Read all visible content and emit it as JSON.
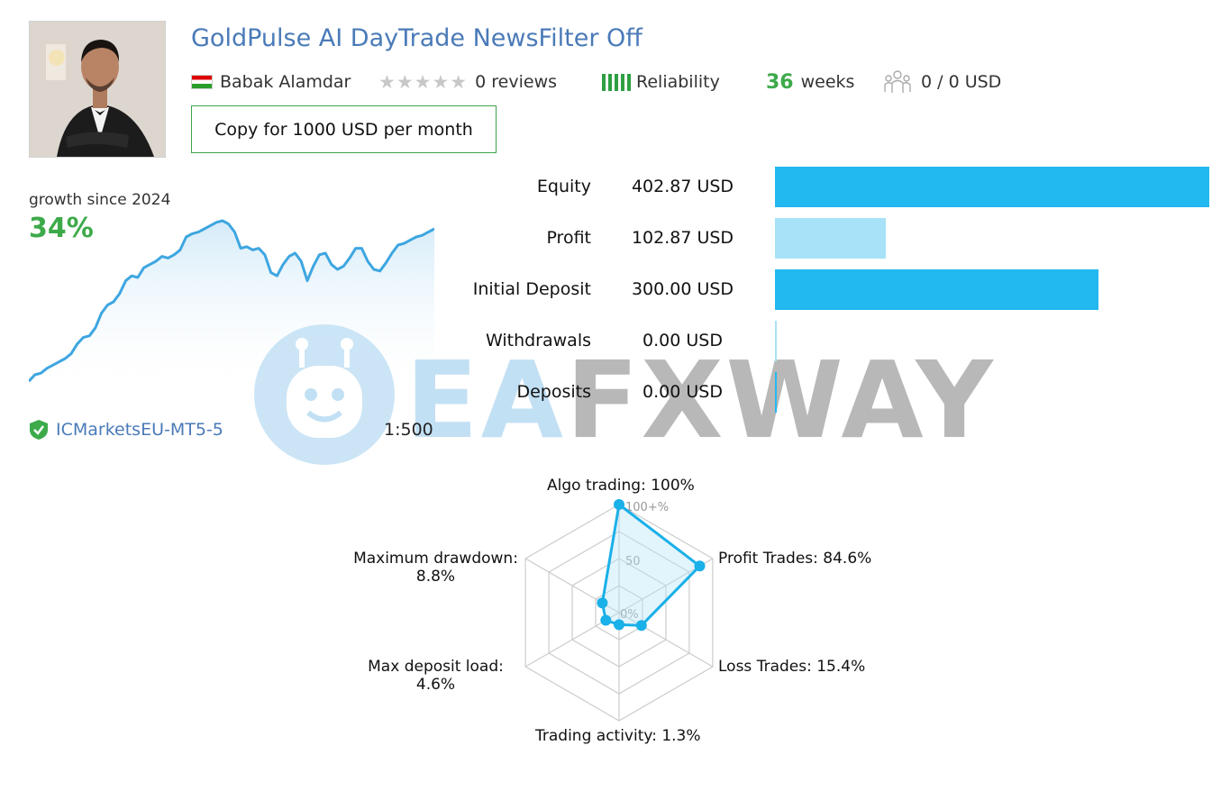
{
  "header": {
    "title": "GoldPulse AI DayTrade NewsFilter Off",
    "author": "Babak Alamdar",
    "reviews": "0 reviews",
    "reliability_label": "Reliability",
    "weeks_value": "36",
    "weeks_label": "weeks",
    "subscribers": "0 / 0 USD",
    "copy_button": "Copy for 1000 USD per month"
  },
  "growth": {
    "label": "growth since 2024",
    "value": "34%"
  },
  "stats": [
    {
      "label": "Equity",
      "value": "402.87 USD",
      "amount": 402.87,
      "color": "#22b8f0"
    },
    {
      "label": "Profit",
      "value": "102.87 USD",
      "amount": 102.87,
      "color": "#a8e2f8"
    },
    {
      "label": "Initial Deposit",
      "value": "300.00 USD",
      "amount": 300.0,
      "color": "#22b8f0"
    },
    {
      "label": "Withdrawals",
      "value": "0.00 USD",
      "amount": 0,
      "color": "#a8e2f8"
    },
    {
      "label": "Deposits",
      "value": "0.00 USD",
      "amount": 0,
      "color": "#22b8f0"
    }
  ],
  "account": {
    "broker": "ICMarketsEU-MT5-5",
    "leverage": "1:500"
  },
  "watermark": {
    "part1": "EA",
    "part2": "FXWAY"
  },
  "radar": {
    "axes": [
      {
        "label": "Algo trading: 100%",
        "value": 100
      },
      {
        "label": "Profit Trades: 84.6%",
        "value": 84.6
      },
      {
        "label": "Loss Trades: 15.4%",
        "value": 15.4
      },
      {
        "label": "Trading activity: 1.3%",
        "value": 1.3
      },
      {
        "label_line1": "Max deposit load:",
        "label_line2": "4.6%",
        "value": 4.6
      },
      {
        "label_line1": "Maximum drawdown:",
        "label_line2": "8.8%",
        "value": 8.8
      }
    ],
    "ticks": [
      "100+%",
      "50",
      "0%"
    ]
  },
  "chart_data": {
    "type": "area",
    "y_relative": [
      0.01,
      0.05,
      0.06,
      0.09,
      0.11,
      0.13,
      0.15,
      0.18,
      0.24,
      0.28,
      0.29,
      0.34,
      0.43,
      0.48,
      0.5,
      0.55,
      0.63,
      0.66,
      0.65,
      0.71,
      0.73,
      0.75,
      0.78,
      0.77,
      0.79,
      0.82,
      0.9,
      0.92,
      0.93,
      0.95,
      0.97,
      0.99,
      1.0,
      0.98,
      0.93,
      0.83,
      0.84,
      0.82,
      0.83,
      0.79,
      0.68,
      0.66,
      0.73,
      0.78,
      0.8,
      0.75,
      0.63,
      0.72,
      0.79,
      0.8,
      0.73,
      0.7,
      0.72,
      0.77,
      0.83,
      0.83,
      0.75,
      0.7,
      0.69,
      0.74,
      0.8,
      0.85,
      0.86,
      0.88,
      0.9,
      0.91,
      0.93,
      0.95
    ]
  }
}
